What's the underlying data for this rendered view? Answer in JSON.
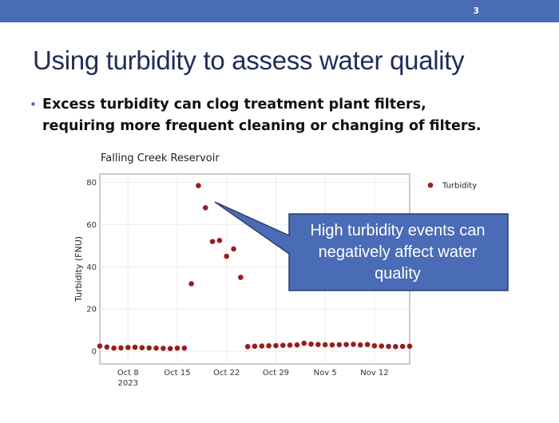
{
  "page_number": "3",
  "slide": {
    "title": "Using turbidity to assess water quality",
    "bullet": "Excess turbidity can clog treatment plant filters, requiring more frequent cleaning or changing of filters."
  },
  "callout": {
    "text": "High turbidity events can negatively affect water quality"
  },
  "colors": {
    "header": "#4a6bb5",
    "title": "#222c5a",
    "marker": "#9b1c1c",
    "callout_fill": "#4a6bb5",
    "callout_border": "#2a3e6f"
  },
  "chart_data": {
    "type": "scatter",
    "title": "Falling Creek Reservoir",
    "xlabel": "",
    "ylabel": "Turbidity (FNU)",
    "xlim": [
      "2023-10-04",
      "2023-11-17"
    ],
    "ylim": [
      -6,
      84
    ],
    "grid": true,
    "legend_position": "top-right",
    "x_ticks": [
      {
        "date": "2023-10-08",
        "label": "Oct 8",
        "sublabel": "2023"
      },
      {
        "date": "2023-10-15",
        "label": "Oct 15"
      },
      {
        "date": "2023-10-22",
        "label": "Oct 22"
      },
      {
        "date": "2023-10-29",
        "label": "Oct 29"
      },
      {
        "date": "2023-11-05",
        "label": "Nov 5"
      },
      {
        "date": "2023-11-12",
        "label": "Nov 12"
      }
    ],
    "y_ticks": [
      0,
      20,
      40,
      60,
      80
    ],
    "series": [
      {
        "name": "Turbidity",
        "x": [
          "2023-10-04",
          "2023-10-05",
          "2023-10-06",
          "2023-10-07",
          "2023-10-08",
          "2023-10-09",
          "2023-10-10",
          "2023-10-11",
          "2023-10-12",
          "2023-10-13",
          "2023-10-14",
          "2023-10-15",
          "2023-10-16",
          "2023-10-17",
          "2023-10-18",
          "2023-10-19",
          "2023-10-20",
          "2023-10-21",
          "2023-10-22",
          "2023-10-23",
          "2023-10-24",
          "2023-10-25",
          "2023-10-26",
          "2023-10-27",
          "2023-10-28",
          "2023-10-29",
          "2023-10-30",
          "2023-10-31",
          "2023-11-01",
          "2023-11-02",
          "2023-11-03",
          "2023-11-04",
          "2023-11-05",
          "2023-11-06",
          "2023-11-07",
          "2023-11-08",
          "2023-11-09",
          "2023-11-10",
          "2023-11-11",
          "2023-11-12",
          "2023-11-13",
          "2023-11-14",
          "2023-11-15",
          "2023-11-16",
          "2023-11-17"
        ],
        "y": [
          2.5,
          2.0,
          1.5,
          1.6,
          1.8,
          1.9,
          1.7,
          1.6,
          1.5,
          1.4,
          1.3,
          1.5,
          1.5,
          32,
          78.5,
          68,
          52,
          52.5,
          45,
          48.5,
          35,
          2.2,
          2.4,
          2.5,
          2.6,
          2.7,
          2.8,
          2.9,
          3.0,
          3.8,
          3.4,
          3.2,
          3.1,
          3.0,
          3.1,
          3.2,
          3.3,
          3.0,
          3.2,
          2.6,
          2.5,
          2.3,
          2.2,
          2.3,
          2.4
        ]
      }
    ]
  }
}
